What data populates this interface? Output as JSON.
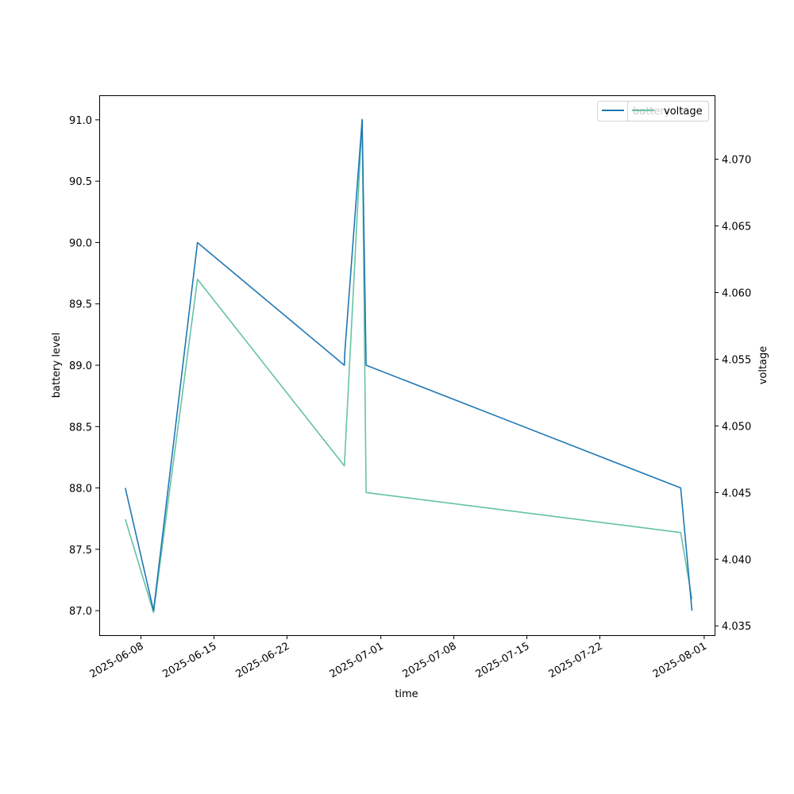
{
  "chart_data": {
    "type": "line",
    "title": "",
    "xlabel": "time",
    "ylabel_left": "battery level",
    "ylabel_right": "voltage",
    "x_ticks": [
      "2025-06-08",
      "2025-06-15",
      "2025-06-22",
      "2025-07-01",
      "2025-07-08",
      "2025-07-15",
      "2025-07-22",
      "2025-08-01"
    ],
    "x_range": [
      "2025-06-04",
      "2025-08-02"
    ],
    "ylim_left": [
      86.8,
      91.2
    ],
    "ylim_right": [
      4.0343,
      4.0748
    ],
    "y_ticks_left": [
      "87.0",
      "87.5",
      "88.0",
      "88.5",
      "89.0",
      "89.5",
      "90.0",
      "90.5",
      "91.0"
    ],
    "y_ticks_right": [
      "4.035",
      "4.040",
      "4.045",
      "4.050",
      "4.055",
      "4.060",
      "4.065",
      "4.070"
    ],
    "grid": false,
    "legend_placement": "top-right",
    "series": [
      {
        "name": "battery",
        "axis": "left",
        "color": "#1f77b4",
        "points": [
          [
            "2025-06-06 12:00",
            88.0
          ],
          [
            "2025-06-09 05:00",
            87.0
          ],
          [
            "2025-06-13 10:00",
            90.0
          ],
          [
            "2025-06-27 12:00",
            89.0
          ],
          [
            "2025-06-27 13:00",
            89.1
          ],
          [
            "2025-06-29 05:00",
            91.0
          ],
          [
            "2025-06-29 14:00",
            89.0
          ],
          [
            "2025-07-29 18:00",
            88.0
          ],
          [
            "2025-07-30 20:00",
            87.0
          ]
        ]
      },
      {
        "name": "voltage",
        "axis": "right",
        "color": "#66c2a5",
        "points": [
          [
            "2025-06-06 12:00",
            4.043
          ],
          [
            "2025-06-09 05:00",
            4.036
          ],
          [
            "2025-06-13 10:00",
            4.061
          ],
          [
            "2025-06-27 12:00",
            4.047
          ],
          [
            "2025-06-29 05:00",
            4.073
          ],
          [
            "2025-06-29 14:00",
            4.045
          ],
          [
            "2025-07-29 18:00",
            4.042
          ],
          [
            "2025-07-30 20:00",
            4.037
          ]
        ]
      }
    ]
  }
}
